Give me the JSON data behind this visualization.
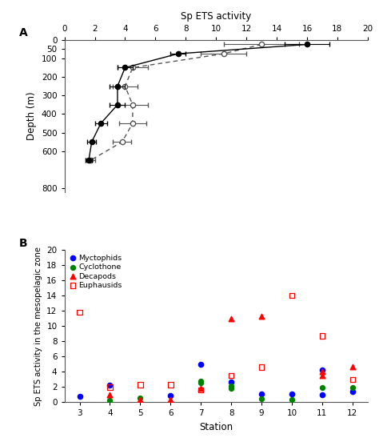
{
  "panel_A": {
    "title": "Sp ETS activity",
    "ylabel": "Depth (m)",
    "xlim": [
      0,
      20
    ],
    "ylim": [
      820,
      0
    ],
    "xticks": [
      0,
      2,
      4,
      6,
      8,
      10,
      12,
      14,
      16,
      18,
      20
    ],
    "yticks": [
      0,
      50,
      100,
      200,
      300,
      400,
      500,
      600,
      800
    ],
    "filled_depths": [
      25,
      75,
      150,
      250,
      350,
      450,
      550,
      650
    ],
    "filled_values": [
      16.0,
      7.5,
      4.0,
      3.5,
      3.5,
      2.4,
      1.8,
      1.6
    ],
    "filled_xerr": [
      1.5,
      0.5,
      0.5,
      0.5,
      0.5,
      0.4,
      0.3,
      0.2
    ],
    "open_depths": [
      25,
      75,
      150,
      250,
      350,
      450,
      550,
      650
    ],
    "open_values": [
      13.0,
      10.5,
      4.5,
      4.0,
      4.5,
      4.5,
      3.8,
      1.7
    ],
    "open_xerr": [
      2.5,
      1.5,
      1.0,
      0.8,
      1.0,
      0.9,
      0.6,
      0.3
    ]
  },
  "panel_B": {
    "ylabel": "Sp ETS activity in the mesopelagic zone",
    "xlabel": "Station",
    "xlim": [
      2.5,
      12.5
    ],
    "ylim": [
      0,
      20
    ],
    "yticks": [
      0,
      2,
      4,
      6,
      8,
      10,
      12,
      14,
      16,
      18,
      20
    ],
    "xticks": [
      3,
      4,
      5,
      6,
      7,
      8,
      9,
      10,
      11,
      12
    ],
    "myctophids_x": [
      3,
      4,
      6,
      7,
      8,
      9,
      10,
      11,
      11,
      12
    ],
    "myctophids_y": [
      0.8,
      2.2,
      0.9,
      5.0,
      2.7,
      1.1,
      1.1,
      1.0,
      4.2,
      1.4
    ],
    "cyclothone_x": [
      4,
      5,
      7,
      7,
      8,
      8,
      9,
      10,
      11,
      12
    ],
    "cyclothone_y": [
      0.2,
      0.6,
      2.8,
      2.6,
      2.1,
      1.8,
      0.5,
      0.3,
      1.9,
      1.9
    ],
    "decapods_x": [
      4,
      5,
      6,
      7,
      8,
      9,
      11,
      11,
      12
    ],
    "decapods_y": [
      1.0,
      0.4,
      0.3,
      1.8,
      11.0,
      11.3,
      3.5,
      4.0,
      4.7
    ],
    "euphausids_x": [
      3,
      4,
      5,
      6,
      7,
      8,
      9,
      10,
      11,
      12
    ],
    "euphausids_y": [
      11.8,
      2.0,
      2.3,
      2.3,
      1.6,
      3.5,
      4.6,
      14.0,
      8.7,
      3.0
    ],
    "legend_labels": [
      "Myctophids",
      "Cyclothone",
      "Decapods",
      "Euphausids"
    ]
  }
}
